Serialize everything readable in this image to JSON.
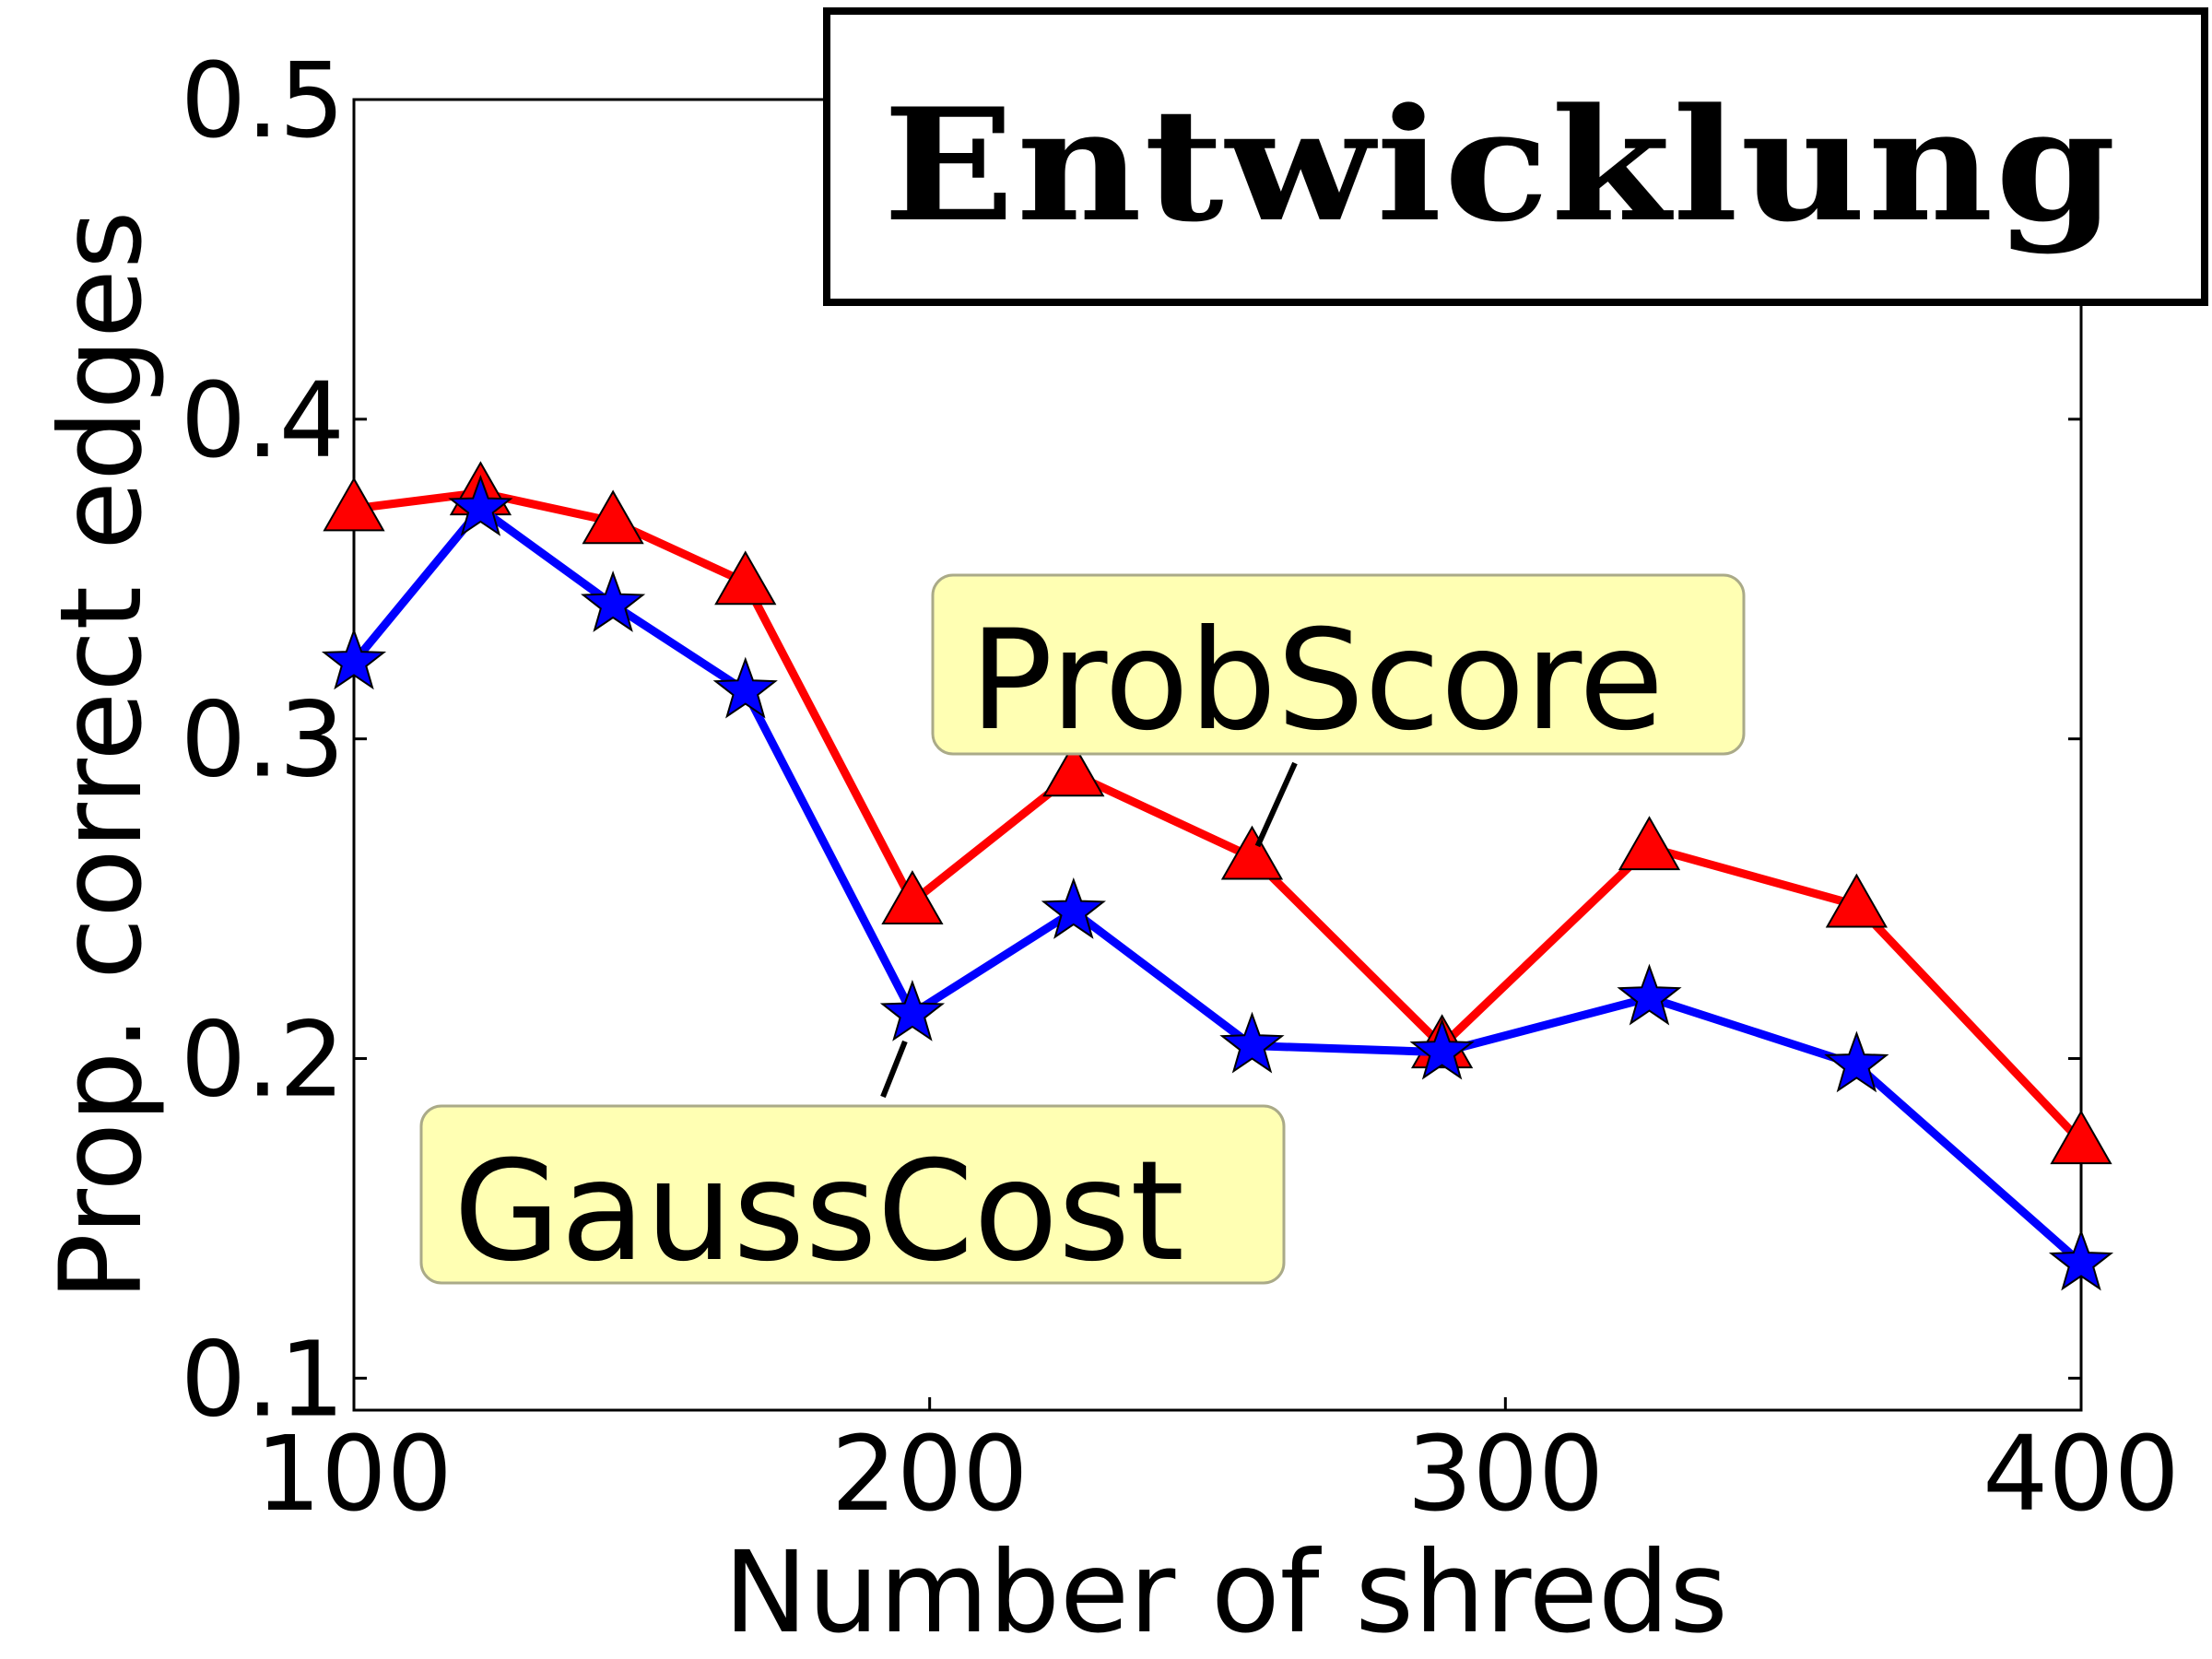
{
  "chart_data": {
    "type": "line",
    "xlabel": "Number of shreds",
    "ylabel": "Prop. correct edges",
    "xlim": [
      100,
      400
    ],
    "ylim": [
      0.09,
      0.5
    ],
    "xticks": [
      100,
      200,
      300,
      400
    ],
    "xtick_labels": [
      "100",
      "200",
      "300",
      "400"
    ],
    "yticks": [
      0.1,
      0.2,
      0.3,
      0.4,
      0.5
    ],
    "ytick_labels": [
      "0.1",
      "0.2",
      "0.3",
      "0.4",
      "0.5"
    ],
    "grid": false,
    "series": [
      {
        "name": "ProbScore",
        "color": "#ff0000",
        "marker": "triangle",
        "x": [
          100,
          122,
          145,
          168,
          197,
          225,
          256,
          289,
          325,
          361,
          400
        ],
        "y": [
          0.372,
          0.377,
          0.368,
          0.349,
          0.249,
          0.289,
          0.263,
          0.204,
          0.266,
          0.248,
          0.174
        ]
      },
      {
        "name": "GaussCost",
        "color": "#0000ff",
        "marker": "star",
        "x": [
          100,
          122,
          145,
          168,
          197,
          225,
          256,
          289,
          325,
          361,
          400
        ],
        "y": [
          0.324,
          0.372,
          0.342,
          0.315,
          0.214,
          0.246,
          0.204,
          0.202,
          0.219,
          0.198,
          0.136
        ]
      }
    ],
    "annotations": [
      {
        "text": "ProbScore",
        "series": "ProbScore",
        "point_index": 6
      },
      {
        "text": "GaussCost",
        "series": "GaussCost",
        "point_index": 4
      }
    ],
    "inset_image_text": "Entwicklung"
  }
}
